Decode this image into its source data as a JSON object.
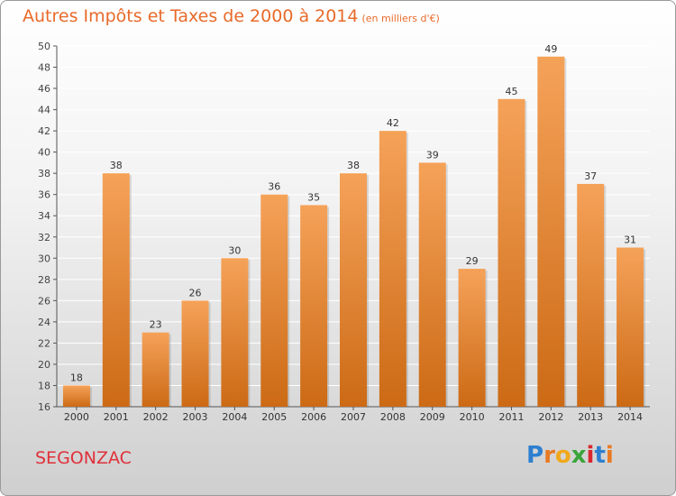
{
  "header": {
    "title": "Autres Impôts et Taxes de 2000 à 2014",
    "unit": "(en milliers d'€)"
  },
  "footer": {
    "city": "SEGONZAC",
    "logo_letters": [
      "P",
      "r",
      "o",
      "x",
      "i",
      "t",
      "i"
    ],
    "logo_colors": [
      "#2e7fd0",
      "#e87a23",
      "#f0a81c",
      "#3aa43a",
      "#d8282f",
      "#2e7fd0",
      "#e87a23"
    ]
  },
  "colors": {
    "bar_top": "#f5a259",
    "bar_bottom": "#cc6a15",
    "title": "#e86a2a",
    "city": "#e0303a",
    "grid": "#ffffff"
  },
  "chart_data": {
    "type": "bar",
    "title": "Autres Impôts et Taxes de 2000 à 2014",
    "subtitle": "(en milliers d'€)",
    "categories": [
      "2000",
      "2001",
      "2002",
      "2003",
      "2004",
      "2005",
      "2006",
      "2007",
      "2008",
      "2009",
      "2010",
      "2011",
      "2012",
      "2013",
      "2014"
    ],
    "values": [
      18,
      38,
      23,
      26,
      30,
      36,
      35,
      38,
      42,
      39,
      29,
      45,
      49,
      37,
      31
    ],
    "ylim": [
      16,
      50
    ],
    "yticks": [
      16,
      18,
      20,
      22,
      24,
      26,
      28,
      30,
      32,
      34,
      36,
      38,
      40,
      42,
      44,
      46,
      48,
      50
    ],
    "grid": true
  }
}
